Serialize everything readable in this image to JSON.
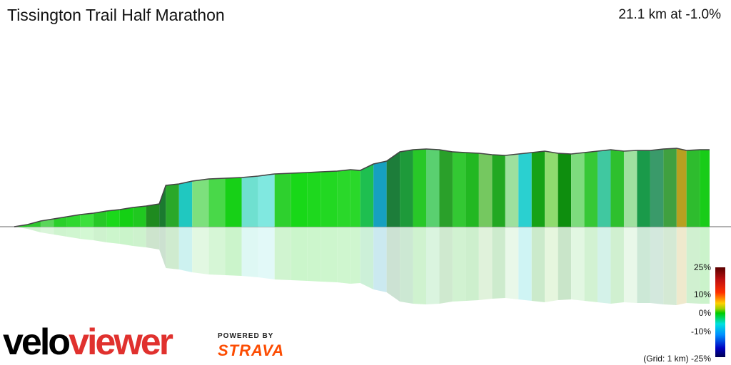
{
  "header": {
    "title": "Tissington Trail Half Marathon",
    "summary": "21.1 km at -1.0%"
  },
  "branding": {
    "logo_part1": "velo",
    "logo_part2": "viewer",
    "powered_by": "POWERED BY",
    "strava": "STRAVA",
    "brand_red": "#e0312e",
    "strava_orange": "#fc4c02"
  },
  "legend": {
    "grid_note": "(Grid: 1 km)",
    "labels": [
      "25%",
      "10%",
      "0%",
      "-10%",
      "-25%"
    ],
    "gradient_colors": [
      "#5a0000",
      "#c01010",
      "#ff3000",
      "#ffd000",
      "#00cc00",
      "#00e0e0",
      "#0090ff",
      "#0000c0",
      "#000050"
    ]
  },
  "chart_data": {
    "type": "area",
    "title": "Tissington Trail Half Marathon",
    "distance_km": 21.1,
    "average_gradient_pct": -1.0,
    "xlim": [
      0,
      21.1
    ],
    "colormap_range_pct": [
      -25,
      25
    ],
    "reflection": true,
    "profile": [
      [
        0.0,
        0,
        "#1fcf1f"
      ],
      [
        0.4,
        3,
        "#2dc82d"
      ],
      [
        0.8,
        8,
        "#5ad65a"
      ],
      [
        1.2,
        11,
        "#2ad02a"
      ],
      [
        1.6,
        14,
        "#30d830"
      ],
      [
        2.0,
        17,
        "#3ce03c"
      ],
      [
        2.4,
        19,
        "#27c927"
      ],
      [
        2.8,
        22,
        "#1bd81b"
      ],
      [
        3.2,
        24,
        "#14d014"
      ],
      [
        3.6,
        27,
        "#20c820"
      ],
      [
        4.0,
        29,
        "#1f8a1f"
      ],
      [
        4.4,
        32,
        "#1b7a30"
      ],
      [
        4.6,
        58,
        "#2aa82a"
      ],
      [
        5.0,
        60,
        "#20c8c0"
      ],
      [
        5.4,
        64,
        "#7de07d"
      ],
      [
        5.9,
        67,
        "#49d849"
      ],
      [
        6.4,
        68,
        "#17d017"
      ],
      [
        6.9,
        69,
        "#6fe0d0"
      ],
      [
        7.4,
        71,
        "#80e8e0"
      ],
      [
        7.9,
        74,
        "#2ed02e"
      ],
      [
        8.4,
        75,
        "#18d818"
      ],
      [
        8.9,
        76,
        "#1ed81e"
      ],
      [
        9.3,
        77,
        "#22d822"
      ],
      [
        9.8,
        78,
        "#2ad82a"
      ],
      [
        10.2,
        80,
        "#2ad82a"
      ],
      [
        10.5,
        79,
        "#1ebf50"
      ],
      [
        10.9,
        88,
        "#16a0c0"
      ],
      [
        11.3,
        92,
        "#1d7d3a"
      ],
      [
        11.7,
        105,
        "#1e9a3a"
      ],
      [
        12.1,
        108,
        "#28c828"
      ],
      [
        12.5,
        109,
        "#5ad070"
      ],
      [
        12.9,
        108,
        "#2aa02a"
      ],
      [
        13.3,
        105,
        "#33c833"
      ],
      [
        13.7,
        104,
        "#22b822"
      ],
      [
        14.1,
        103,
        "#75c860"
      ],
      [
        14.5,
        101,
        "#22a822"
      ],
      [
        14.9,
        100,
        "#9ee09e"
      ],
      [
        15.3,
        102,
        "#2ad0d0"
      ],
      [
        15.7,
        104,
        "#16a216"
      ],
      [
        16.1,
        106,
        "#8fdb6f"
      ],
      [
        16.5,
        103,
        "#0e8e0e"
      ],
      [
        16.9,
        102,
        "#7ddc7d"
      ],
      [
        17.3,
        104,
        "#36c836"
      ],
      [
        17.7,
        106,
        "#40c8a0"
      ],
      [
        18.1,
        108,
        "#2ec02e"
      ],
      [
        18.5,
        106,
        "#a0e0a0"
      ],
      [
        18.9,
        107,
        "#1a9a4a"
      ],
      [
        19.3,
        107,
        "#3a9a6a"
      ],
      [
        19.7,
        109,
        "#40a040"
      ],
      [
        20.1,
        110,
        "#b8a020"
      ],
      [
        20.4,
        107,
        "#2ebc2e"
      ],
      [
        20.8,
        108,
        "#18cc18"
      ],
      [
        21.1,
        108,
        "#18cc18"
      ]
    ]
  }
}
